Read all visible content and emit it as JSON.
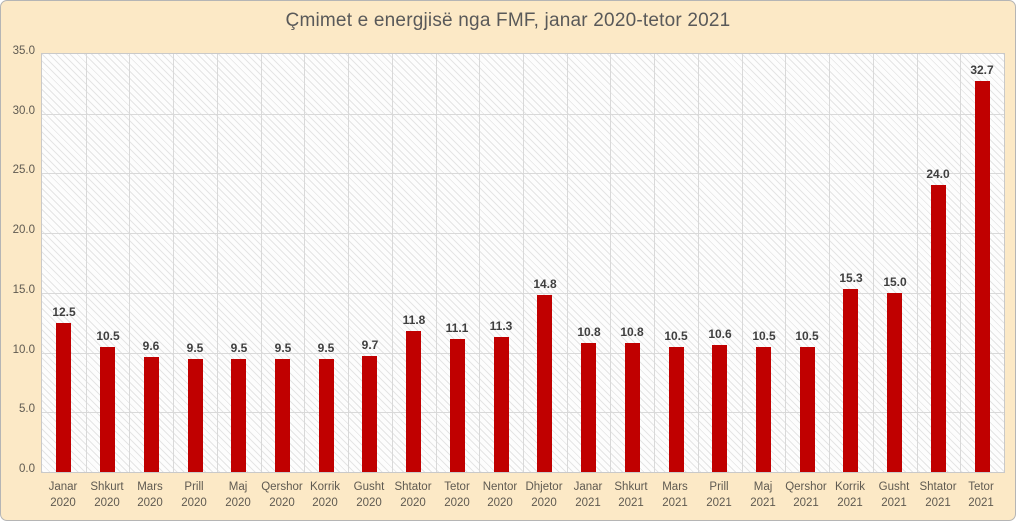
{
  "chart": {
    "title": "Çmimet e energjisë nga FMF, janar 2020-tetor 2021"
  },
  "chart_data": {
    "type": "bar",
    "title": "Çmimet e energjisë nga FMF, janar 2020-tetor 2021",
    "categories": [
      "Janar 2020",
      "Shkurt 2020",
      "Mars 2020",
      "Prill 2020",
      "Maj 2020",
      "Qershor 2020",
      "Korrik 2020",
      "Gusht 2020",
      "Shtator 2020",
      "Tetor 2020",
      "Nentor 2020",
      "Dhjetor 2020",
      "Janar 2021",
      "Shkurt 2021",
      "Mars 2021",
      "Prill 2021",
      "Maj 2021",
      "Qershor 2021",
      "Korrik 2021",
      "Gusht 2021",
      "Shtator 2021",
      "Tetor 2021"
    ],
    "values": [
      12.5,
      10.5,
      9.6,
      9.5,
      9.5,
      9.5,
      9.5,
      9.7,
      11.8,
      11.1,
      11.3,
      14.8,
      10.8,
      10.8,
      10.5,
      10.6,
      10.5,
      10.5,
      15.3,
      15.0,
      24.0,
      32.7
    ],
    "value_labels": [
      "12.5",
      "10.5",
      "9.6",
      "9.5",
      "9.5",
      "9.5",
      "9.5",
      "9.7",
      "11.8",
      "11.1",
      "11.3",
      "14.8",
      "10.8",
      "10.8",
      "10.5",
      "10.6",
      "10.5",
      "10.5",
      "15.3",
      "15.0",
      "24.0",
      "32.7"
    ],
    "xlabel": "",
    "ylabel": "",
    "ylim": [
      0,
      35
    ],
    "yticks": [
      0,
      5,
      10,
      15,
      20,
      25,
      30,
      35
    ],
    "ytick_labels": [
      "0.0",
      "5.0",
      "10.0",
      "15.0",
      "20.0",
      "25.0",
      "30.0",
      "35.0"
    ],
    "grid": true,
    "legend_position": "none",
    "plot_fill": "white with light downward-diagonal hatch",
    "colors": {
      "bar": "#c00000",
      "background": "#fce9c6",
      "title_text": "#595959",
      "axis_text": "#5f5a51",
      "value_label_text": "#3f3f3f",
      "gridline": "#d9d9d9",
      "plot_border": "#c9c9c9"
    }
  }
}
